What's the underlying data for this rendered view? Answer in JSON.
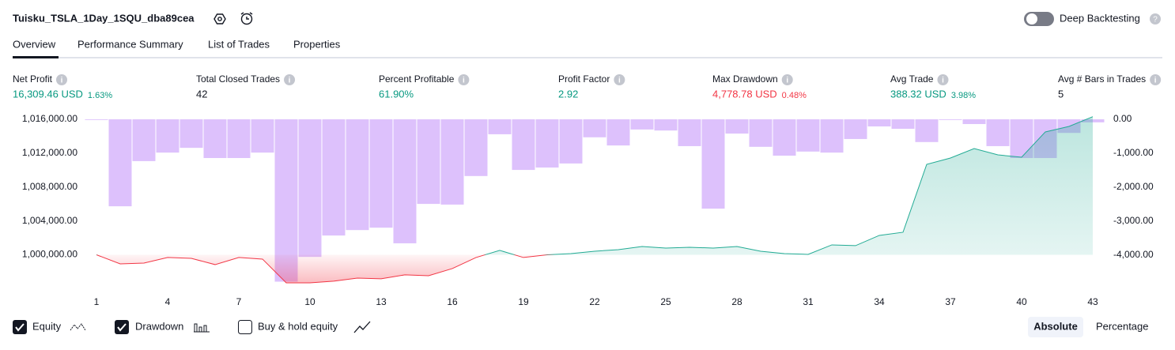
{
  "header": {
    "title": "Tuisku_TSLA_1Day_1SQU_dba89cea",
    "deep_backtesting": "Deep Backtesting"
  },
  "tabs": [
    "Overview",
    "Performance Summary",
    "List of Trades",
    "Properties"
  ],
  "metrics": [
    {
      "label": "Net Profit",
      "value": "16,309.46 USD",
      "percent": "1.63%",
      "color": "#089981"
    },
    {
      "label": "Total Closed Trades",
      "value": "42",
      "color": "#131722"
    },
    {
      "label": "Percent Profitable",
      "value": "61.90%",
      "color": "#089981"
    },
    {
      "label": "Profit Factor",
      "value": "2.92",
      "color": "#089981"
    },
    {
      "label": "Max Drawdown",
      "value": "4,778.78 USD",
      "percent": "0.48%",
      "color": "#f23645"
    },
    {
      "label": "Avg Trade",
      "value": "388.32 USD",
      "percent": "3.98%",
      "color": "#089981"
    },
    {
      "label": "Avg # Bars in Trades",
      "value": "5",
      "color": "#131722"
    }
  ],
  "chart_data": {
    "type": "combo",
    "x": [
      1,
      2,
      3,
      4,
      5,
      6,
      7,
      8,
      9,
      10,
      11,
      12,
      13,
      14,
      15,
      16,
      17,
      18,
      19,
      20,
      21,
      22,
      23,
      24,
      25,
      26,
      27,
      28,
      29,
      30,
      31,
      32,
      33,
      34,
      35,
      36,
      37,
      38,
      39,
      40,
      41,
      42,
      43
    ],
    "xlim": [
      1,
      43
    ],
    "xticks": [
      1,
      4,
      7,
      10,
      13,
      16,
      19,
      22,
      25,
      28,
      31,
      34,
      37,
      40,
      43
    ],
    "ylim": [
      996500,
      1016000
    ],
    "yticks": [
      {
        "value": 1000000,
        "label": "1,000,000.00"
      },
      {
        "value": 1004000,
        "label": "1,004,000.00"
      },
      {
        "value": 1008000,
        "label": "1,008,000.00"
      },
      {
        "value": 1012000,
        "label": "1,012,000.00"
      },
      {
        "value": 1016000,
        "label": "1,016,000.00"
      }
    ],
    "y2lim": [
      -4860,
      0
    ],
    "y2ticks": [
      {
        "value": 0,
        "label": "0.00"
      },
      {
        "value": -1000,
        "label": "-1,000.00"
      },
      {
        "value": -2000,
        "label": "-2,000.00"
      },
      {
        "value": -3000,
        "label": "-3,000.00"
      },
      {
        "value": -4000,
        "label": "-4,000.00"
      }
    ],
    "baseline": 1000000,
    "series": [
      {
        "name": "Equity",
        "type": "line",
        "color": "#22ab94",
        "negative_color": "#f23645",
        "values": [
          1000000,
          998930,
          999020,
          999680,
          999580,
          998840,
          999680,
          999490,
          996690,
          996690,
          996880,
          997250,
          997160,
          997630,
          997530,
          998370,
          999680,
          1000520,
          999680,
          1000000,
          1000140,
          1000420,
          1000610,
          1000980,
          1000790,
          1000890,
          1000790,
          1000980,
          1000420,
          1000140,
          1000050,
          1001170,
          1001080,
          1002290,
          1002660,
          1010680,
          1011430,
          1012550,
          1011800,
          1011520,
          1014510,
          1015160,
          1016309
        ]
      },
      {
        "name": "Drawdown",
        "type": "bar",
        "axis": "y2",
        "color": "#d7b6fc",
        "values": [
          -20,
          -2560,
          -1230,
          -980,
          -840,
          -1140,
          -1140,
          -980,
          -4779,
          -4050,
          -3420,
          -3260,
          -3190,
          -3650,
          -2490,
          -2510,
          -1670,
          -440,
          -1490,
          -1420,
          -1300,
          -530,
          -770,
          -300,
          -330,
          -790,
          -2630,
          -420,
          -810,
          -1070,
          -950,
          -980,
          -580,
          -210,
          -280,
          -670,
          -20,
          -140,
          -790,
          -1140,
          -1140,
          -400,
          -90
        ]
      }
    ]
  },
  "footer": {
    "buy_hold": "Buy & hold equity",
    "absolute": "Absolute",
    "percentage": "Percentage"
  }
}
